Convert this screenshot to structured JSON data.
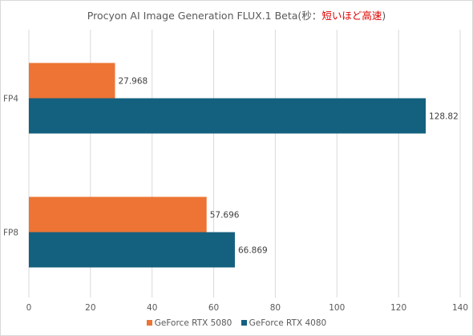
{
  "chart_data": {
    "type": "bar",
    "orientation": "horizontal",
    "title_main": "Procyon AI Image Generation FLUX.1 Beta(秒：",
    "title_highlight": "短いほど高速",
    "title_end": ")",
    "categories": [
      "FP4",
      "FP8"
    ],
    "series": [
      {
        "name": "GeForce RTX 5080",
        "color": "#ed7434",
        "values": [
          27.968,
          57.696
        ],
        "labels": [
          "27.968",
          "57.696"
        ]
      },
      {
        "name": "GeForce RTX 4080",
        "color": "#14607f",
        "values": [
          128.82,
          66.869
        ],
        "labels": [
          "128.82",
          "66.869"
        ]
      }
    ],
    "xlim": [
      0,
      140
    ],
    "xticks": [
      "0",
      "20",
      "40",
      "60",
      "80",
      "100",
      "120",
      "140"
    ],
    "grid": true,
    "legend_position": "bottom"
  }
}
